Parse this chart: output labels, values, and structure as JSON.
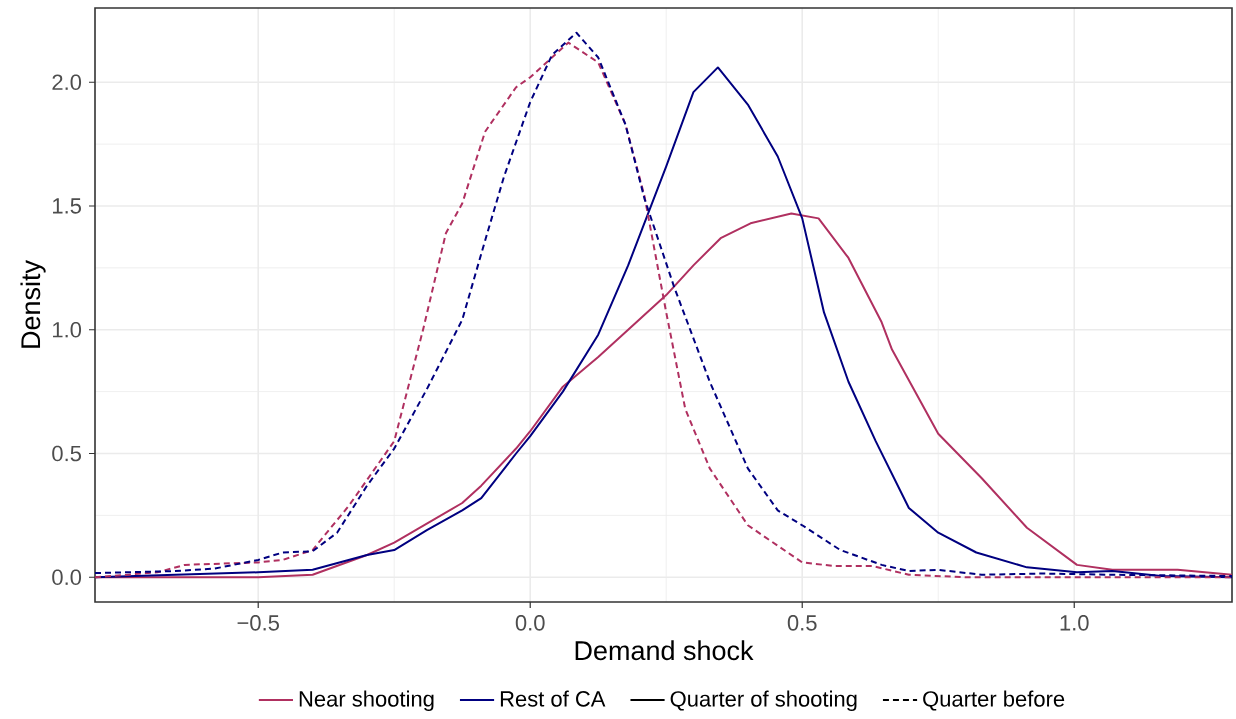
{
  "chart_data": {
    "type": "line",
    "xlabel": "Demand shock",
    "ylabel": "Density",
    "xlim": [
      -0.8,
      1.29
    ],
    "ylim": [
      -0.1,
      2.3
    ],
    "xticks": [
      {
        "value": -0.5,
        "label": "−0.5"
      },
      {
        "value": 0,
        "label": "0.0"
      },
      {
        "value": 0.5,
        "label": "0.5"
      },
      {
        "value": 1,
        "label": "1.0"
      }
    ],
    "yticks": [
      {
        "value": 0,
        "label": "0.0"
      },
      {
        "value": 0.5,
        "label": "0.5"
      },
      {
        "value": 1,
        "label": "1.0"
      },
      {
        "value": 1.5,
        "label": "1.5"
      },
      {
        "value": 2,
        "label": "2.0"
      }
    ],
    "grid": true,
    "legend": "bottom",
    "series": [
      {
        "name": "Near shooting",
        "color": "#b03060",
        "line_style": "solid",
        "x": [
          -0.8,
          -0.5,
          -0.4,
          -0.3,
          -0.25,
          -0.125,
          -0.09,
          -0.026,
          0.0,
          0.06,
          0.125,
          0.18,
          0.25,
          0.3,
          0.35,
          0.405,
          0.48,
          0.53,
          0.585,
          0.646,
          0.665,
          0.75,
          0.83,
          0.913,
          1.005,
          1.07,
          1.19,
          1.29
        ],
        "values": [
          0,
          0,
          0.01,
          0.09,
          0.14,
          0.3,
          0.37,
          0.52,
          0.59,
          0.77,
          0.89,
          1.0,
          1.14,
          1.26,
          1.37,
          1.43,
          1.47,
          1.45,
          1.29,
          1.03,
          0.92,
          0.58,
          0.4,
          0.2,
          0.05,
          0.03,
          0.03,
          0.01
        ]
      },
      {
        "name": "Rest of CA",
        "color": "#000080",
        "line_style": "solid",
        "x": [
          -0.8,
          -0.5,
          -0.4,
          -0.3,
          -0.25,
          -0.19,
          -0.125,
          -0.09,
          -0.026,
          0.0,
          0.06,
          0.125,
          0.18,
          0.25,
          0.3,
          0.345,
          0.4,
          0.455,
          0.5,
          0.54,
          0.585,
          0.635,
          0.696,
          0.75,
          0.82,
          0.913,
          1.005,
          1.07,
          1.16,
          1.29
        ],
        "values": [
          0,
          0.02,
          0.03,
          0.09,
          0.11,
          0.19,
          0.27,
          0.32,
          0.5,
          0.57,
          0.75,
          0.98,
          1.26,
          1.66,
          1.96,
          2.06,
          1.91,
          1.7,
          1.45,
          1.07,
          0.79,
          0.55,
          0.28,
          0.18,
          0.1,
          0.04,
          0.02,
          0.025,
          0.005,
          0
        ]
      },
      {
        "name": "Quarter of shooting",
        "color": "#000000",
        "line_style": "solid"
      },
      {
        "name": "Quarter before",
        "color": "#000000",
        "line_style": "dashed"
      },
      {
        "color": "#b03060",
        "line_style": "dashed",
        "x": [
          -0.8,
          -0.685,
          -0.635,
          -0.5,
          -0.455,
          -0.4,
          -0.333,
          -0.25,
          -0.197,
          -0.155,
          -0.125,
          -0.083,
          -0.026,
          0.0,
          0.07,
          0.125,
          0.175,
          0.21,
          0.25,
          0.285,
          0.33,
          0.4,
          0.5,
          0.56,
          0.63,
          0.696,
          0.8,
          1.0,
          1.29
        ],
        "values": [
          0,
          0.02,
          0.05,
          0.06,
          0.07,
          0.11,
          0.29,
          0.55,
          1.0,
          1.39,
          1.51,
          1.8,
          1.98,
          2.02,
          2.16,
          2.08,
          1.83,
          1.54,
          1.07,
          0.68,
          0.44,
          0.21,
          0.06,
          0.045,
          0.045,
          0.01,
          0,
          0,
          0
        ]
      },
      {
        "color": "#000080",
        "line_style": "dashed",
        "x": [
          -0.8,
          -0.655,
          -0.58,
          -0.5,
          -0.455,
          -0.4,
          -0.355,
          -0.3,
          -0.25,
          -0.19,
          -0.125,
          -0.083,
          -0.048,
          0.0,
          0.04,
          0.085,
          0.125,
          0.175,
          0.21,
          0.265,
          0.33,
          0.4,
          0.455,
          0.5,
          0.57,
          0.646,
          0.696,
          0.75,
          0.83,
          0.943,
          1.07,
          1.29
        ],
        "values": [
          0.017,
          0.025,
          0.035,
          0.07,
          0.1,
          0.105,
          0.18,
          0.37,
          0.52,
          0.76,
          1.04,
          1.36,
          1.62,
          1.92,
          2.11,
          2.2,
          2.1,
          1.83,
          1.53,
          1.17,
          0.79,
          0.44,
          0.27,
          0.21,
          0.11,
          0.05,
          0.025,
          0.03,
          0.01,
          0.015,
          0.01,
          0.005
        ]
      }
    ]
  }
}
